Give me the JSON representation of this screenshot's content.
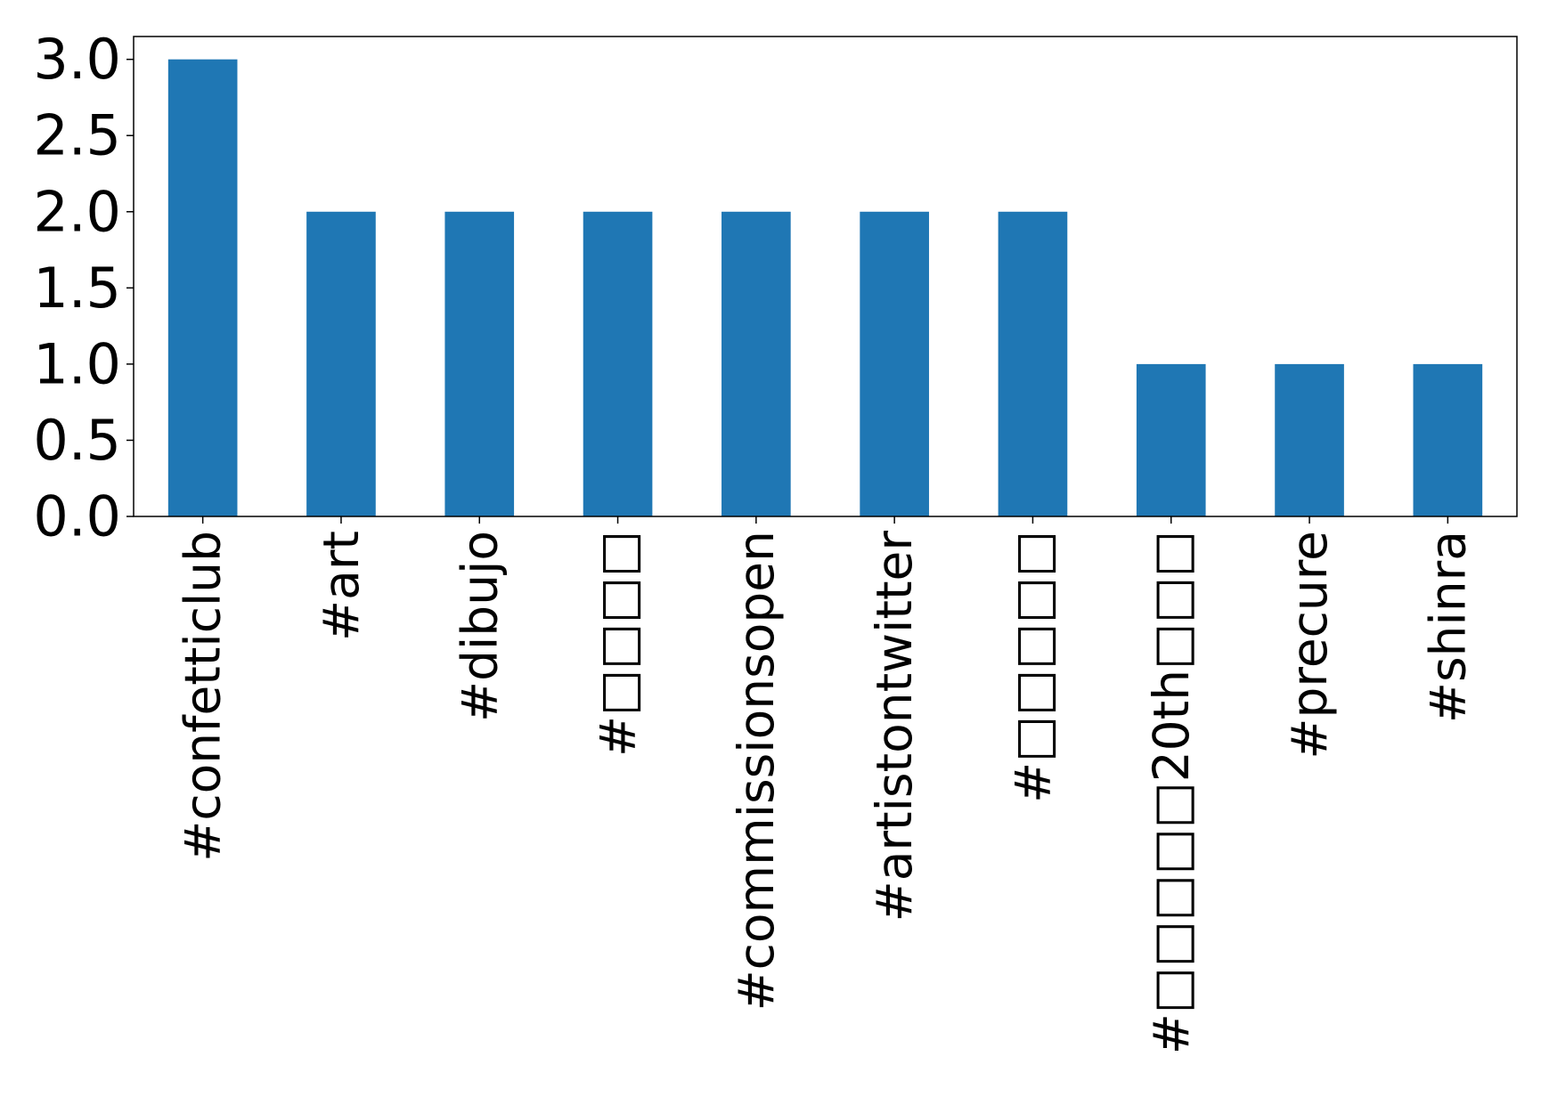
{
  "colors": {
    "bar": "#1f77b4",
    "axis": "#000000",
    "background": "#ffffff"
  },
  "chart_data": {
    "type": "bar",
    "title": "",
    "xlabel": "",
    "ylabel": "",
    "ylim": [
      0,
      3.15
    ],
    "yticks": [
      0.0,
      0.5,
      1.0,
      1.5,
      2.0,
      2.5,
      3.0
    ],
    "ytick_labels": [
      "0.0",
      "0.5",
      "1.0",
      "1.5",
      "2.0",
      "2.5",
      "3.0"
    ],
    "categories": [
      "#confetticlub",
      "#art",
      "#dibujo",
      "#□□□□",
      "#commissionsopen",
      "#artistontwitter",
      "#□□□□□",
      "#□□□□□20th□□□",
      "#precure",
      "#shinra"
    ],
    "values": [
      3,
      2,
      2,
      2,
      2,
      2,
      2,
      1,
      1,
      1
    ],
    "grid": false,
    "legend": "none"
  }
}
